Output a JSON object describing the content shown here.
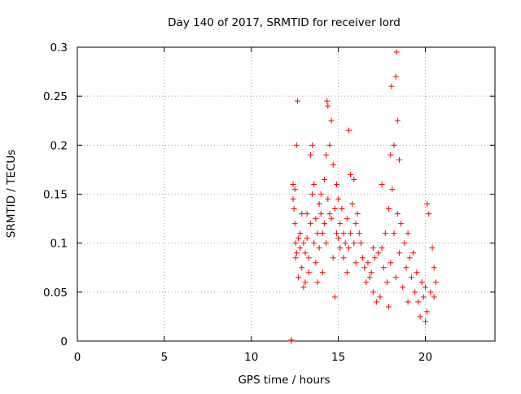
{
  "chart_data": {
    "type": "scatter",
    "title": "Day 140 of 2017, SRMTID for receiver lord",
    "xlabel": "GPS time / hours",
    "ylabel": "SRMTID / TECUs",
    "xlim": [
      0,
      24
    ],
    "ylim": [
      0,
      0.3
    ],
    "xticks": [
      0,
      5,
      10,
      15,
      20
    ],
    "yticks": [
      0,
      0.05,
      0.1,
      0.15,
      0.2,
      0.25,
      0.3
    ],
    "xtick_labels": [
      "0",
      "5",
      "10",
      "15",
      "20"
    ],
    "ytick_labels": [
      "0",
      "0.05",
      "0.1",
      "0.15",
      "0.2",
      "0.25",
      "0.3"
    ],
    "grid": true,
    "marker": "+",
    "marker_color": "#ff0000",
    "points": [
      [
        12.3,
        0.001
      ],
      [
        12.3,
        0.0
      ],
      [
        12.4,
        0.145
      ],
      [
        12.4,
        0.16
      ],
      [
        12.45,
        0.135
      ],
      [
        12.5,
        0.12
      ],
      [
        12.5,
        0.155
      ],
      [
        12.55,
        0.1
      ],
      [
        12.55,
        0.085
      ],
      [
        12.6,
        0.09
      ],
      [
        12.6,
        0.2
      ],
      [
        12.65,
        0.245
      ],
      [
        12.7,
        0.105
      ],
      [
        12.7,
        0.065
      ],
      [
        12.8,
        0.11
      ],
      [
        12.8,
        0.095
      ],
      [
        12.9,
        0.13
      ],
      [
        12.9,
        0.075
      ],
      [
        13.0,
        0.1
      ],
      [
        13.0,
        0.055
      ],
      [
        13.1,
        0.09
      ],
      [
        13.1,
        0.06
      ],
      [
        13.2,
        0.13
      ],
      [
        13.2,
        0.105
      ],
      [
        13.3,
        0.085
      ],
      [
        13.3,
        0.07
      ],
      [
        13.4,
        0.19
      ],
      [
        13.4,
        0.12
      ],
      [
        13.5,
        0.2
      ],
      [
        13.5,
        0.15
      ],
      [
        13.6,
        0.16
      ],
      [
        13.6,
        0.1
      ],
      [
        13.7,
        0.125
      ],
      [
        13.7,
        0.08
      ],
      [
        13.8,
        0.06
      ],
      [
        13.8,
        0.11
      ],
      [
        13.9,
        0.14
      ],
      [
        13.9,
        0.095
      ],
      [
        14.0,
        0.15
      ],
      [
        14.0,
        0.13
      ],
      [
        14.1,
        0.11
      ],
      [
        14.1,
        0.07
      ],
      [
        14.2,
        0.165
      ],
      [
        14.2,
        0.12
      ],
      [
        14.3,
        0.19
      ],
      [
        14.3,
        0.1
      ],
      [
        14.35,
        0.245
      ],
      [
        14.4,
        0.24
      ],
      [
        14.4,
        0.145
      ],
      [
        14.5,
        0.2
      ],
      [
        14.5,
        0.13
      ],
      [
        14.6,
        0.225
      ],
      [
        14.6,
        0.125
      ],
      [
        14.7,
        0.085
      ],
      [
        14.7,
        0.18
      ],
      [
        14.8,
        0.045
      ],
      [
        14.8,
        0.135
      ],
      [
        14.9,
        0.16
      ],
      [
        14.9,
        0.11
      ],
      [
        15.0,
        0.145
      ],
      [
        15.0,
        0.105
      ],
      [
        15.1,
        0.12
      ],
      [
        15.1,
        0.095
      ],
      [
        15.2,
        0.135
      ],
      [
        15.3,
        0.11
      ],
      [
        15.3,
        0.085
      ],
      [
        15.4,
        0.1
      ],
      [
        15.5,
        0.125
      ],
      [
        15.5,
        0.07
      ],
      [
        15.6,
        0.215
      ],
      [
        15.6,
        0.095
      ],
      [
        15.7,
        0.17
      ],
      [
        15.7,
        0.11
      ],
      [
        15.8,
        0.14
      ],
      [
        15.9,
        0.165
      ],
      [
        15.9,
        0.1
      ],
      [
        16.0,
        0.12
      ],
      [
        16.0,
        0.08
      ],
      [
        16.1,
        0.13
      ],
      [
        16.2,
        0.11
      ],
      [
        16.3,
        0.1
      ],
      [
        16.4,
        0.085
      ],
      [
        16.5,
        0.075
      ],
      [
        16.6,
        0.06
      ],
      [
        16.7,
        0.08
      ],
      [
        16.8,
        0.065
      ],
      [
        16.9,
        0.07
      ],
      [
        17.0,
        0.095
      ],
      [
        17.0,
        0.05
      ],
      [
        17.1,
        0.085
      ],
      [
        17.2,
        0.04
      ],
      [
        17.3,
        0.09
      ],
      [
        17.4,
        0.045
      ],
      [
        17.5,
        0.16
      ],
      [
        17.5,
        0.095
      ],
      [
        17.6,
        0.075
      ],
      [
        17.7,
        0.11
      ],
      [
        17.8,
        0.06
      ],
      [
        17.9,
        0.135
      ],
      [
        17.9,
        0.035
      ],
      [
        18.0,
        0.19
      ],
      [
        18.0,
        0.08
      ],
      [
        18.05,
        0.26
      ],
      [
        18.1,
        0.155
      ],
      [
        18.2,
        0.2
      ],
      [
        18.2,
        0.11
      ],
      [
        18.3,
        0.27
      ],
      [
        18.3,
        0.065
      ],
      [
        18.35,
        0.295
      ],
      [
        18.4,
        0.225
      ],
      [
        18.4,
        0.13
      ],
      [
        18.5,
        0.185
      ],
      [
        18.5,
        0.09
      ],
      [
        18.6,
        0.12
      ],
      [
        18.7,
        0.055
      ],
      [
        18.8,
        0.1
      ],
      [
        18.9,
        0.075
      ],
      [
        19.0,
        0.04
      ],
      [
        19.0,
        0.11
      ],
      [
        19.1,
        0.085
      ],
      [
        19.2,
        0.065
      ],
      [
        19.3,
        0.09
      ],
      [
        19.4,
        0.05
      ],
      [
        19.5,
        0.07
      ],
      [
        19.6,
        0.04
      ],
      [
        19.7,
        0.025
      ],
      [
        19.8,
        0.06
      ],
      [
        19.9,
        0.045
      ],
      [
        20.0,
        0.055
      ],
      [
        20.0,
        0.02
      ],
      [
        20.1,
        0.14
      ],
      [
        20.1,
        0.03
      ],
      [
        20.2,
        0.13
      ],
      [
        20.3,
        0.05
      ],
      [
        20.4,
        0.095
      ],
      [
        20.5,
        0.075
      ],
      [
        20.5,
        0.045
      ],
      [
        20.6,
        0.06
      ]
    ]
  }
}
